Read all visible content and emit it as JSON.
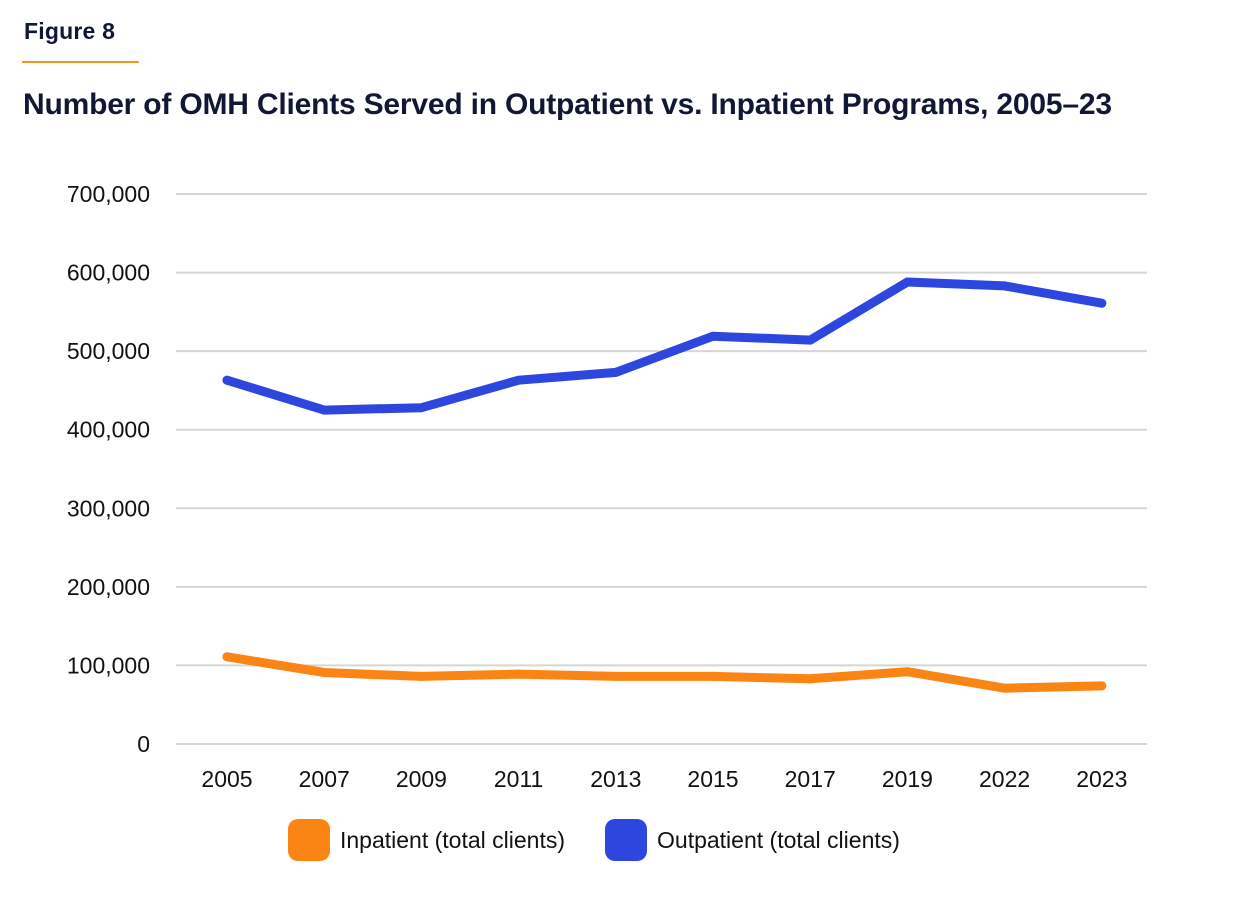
{
  "figure_label": "Figure 8",
  "colors": {
    "text": "#111833",
    "accent_rule": "#f5941f",
    "grid": "#d6d6d6"
  },
  "chart_data": {
    "type": "line",
    "title": "Number of OMH Clients Served in Outpatient vs. Inpatient Programs, 2005–23",
    "xlabel": "",
    "ylabel": "",
    "categories": [
      "2005",
      "2007",
      "2009",
      "2011",
      "2013",
      "2015",
      "2017",
      "2019",
      "2022",
      "2023"
    ],
    "ylim": [
      0,
      700000
    ],
    "yticks": [
      0,
      100000,
      200000,
      300000,
      400000,
      500000,
      600000,
      700000
    ],
    "ytick_labels": [
      "0",
      "100,000",
      "200,000",
      "300,000",
      "400,000",
      "500,000",
      "600,000",
      "700,000"
    ],
    "grid": true,
    "legend_position": "bottom",
    "series": [
      {
        "name": "Inpatient (total clients)",
        "color": "#fb8514",
        "values": [
          111000,
          91000,
          86000,
          89000,
          86000,
          86000,
          83000,
          92000,
          71000,
          74000
        ]
      },
      {
        "name": "Outpatient (total clients)",
        "color": "#2d47de",
        "values": [
          463000,
          425000,
          428000,
          463000,
          473000,
          519000,
          514000,
          588000,
          583000,
          561000
        ]
      }
    ]
  }
}
